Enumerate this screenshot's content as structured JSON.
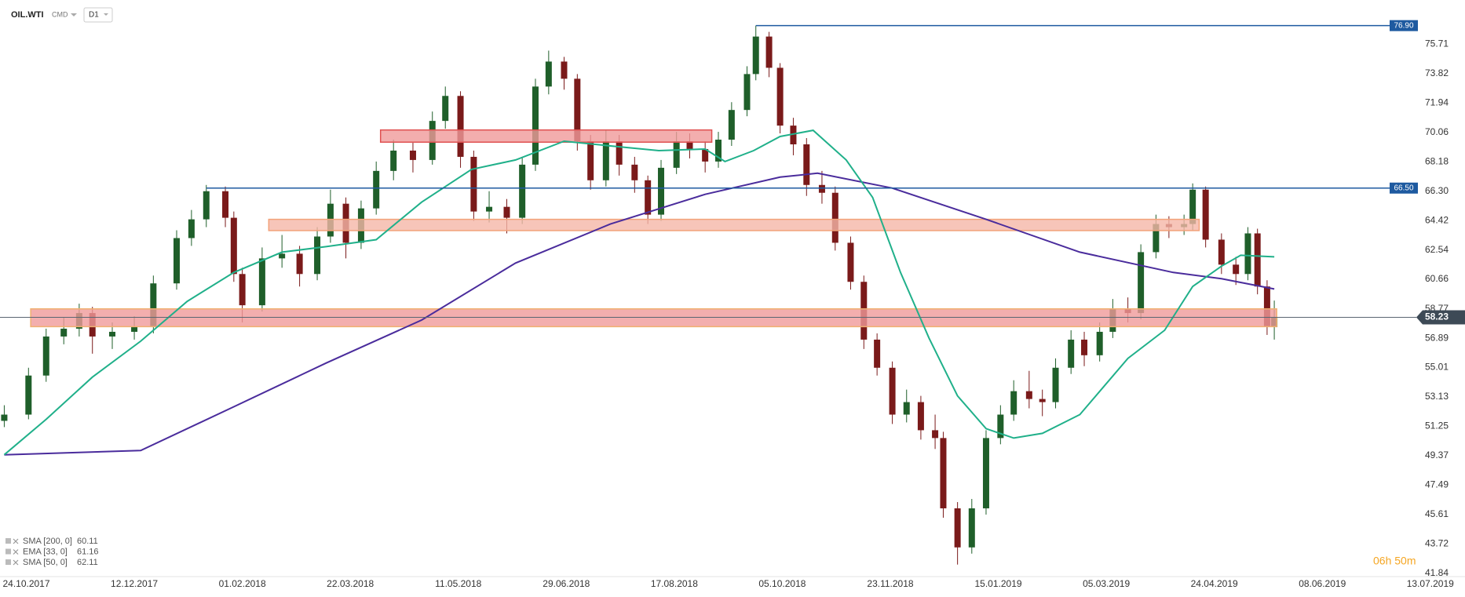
{
  "chart_data": {
    "type": "candlestick",
    "symbol": "OIL.WTI",
    "market": "CMD",
    "timeframe": "D1",
    "up_color": "#1f5f2a",
    "down_color": "#7a1a1a",
    "grid": false,
    "x": [
      "2017-10-14",
      "2017-10-25",
      "2017-11-02",
      "2017-11-10",
      "2017-11-17",
      "2017-11-23",
      "2017-12-02",
      "2017-12-12",
      "2017-12-21",
      "2018-01-01",
      "2018-01-08",
      "2018-01-15",
      "2018-01-24",
      "2018-01-28",
      "2018-02-01",
      "2018-02-10",
      "2018-02-19",
      "2018-02-27",
      "2018-03-07",
      "2018-03-13",
      "2018-03-20",
      "2018-03-27",
      "2018-04-03",
      "2018-04-11",
      "2018-04-20",
      "2018-04-29",
      "2018-05-05",
      "2018-05-12",
      "2018-05-18",
      "2018-05-25",
      "2018-06-02",
      "2018-06-09",
      "2018-06-15",
      "2018-06-21",
      "2018-06-28",
      "2018-07-04",
      "2018-07-10",
      "2018-07-17",
      "2018-07-23",
      "2018-07-30",
      "2018-08-05",
      "2018-08-11",
      "2018-08-18",
      "2018-08-24",
      "2018-08-31",
      "2018-09-06",
      "2018-09-12",
      "2018-09-19",
      "2018-09-23",
      "2018-09-29",
      "2018-10-04",
      "2018-10-10",
      "2018-10-16",
      "2018-10-23",
      "2018-10-29",
      "2018-11-05",
      "2018-11-11",
      "2018-11-17",
      "2018-11-24",
      "2018-12-01",
      "2018-12-08",
      "2018-12-15",
      "2018-12-19",
      "2018-12-26",
      "2019-01-02",
      "2019-01-09",
      "2019-01-16",
      "2019-01-22",
      "2019-01-29",
      "2019-02-04",
      "2019-02-10",
      "2019-02-17",
      "2019-02-23",
      "2019-03-02",
      "2019-03-08",
      "2019-03-15",
      "2019-03-21",
      "2019-03-28",
      "2019-04-03",
      "2019-04-10",
      "2019-04-14",
      "2019-04-20",
      "2019-04-27",
      "2019-05-03",
      "2019-05-08",
      "2019-05-12",
      "2019-05-16",
      "2019-05-19"
    ],
    "open": [
      51.6,
      52.0,
      54.5,
      57.0,
      57.5,
      58.5,
      57.0,
      57.3,
      57.6,
      60.4,
      63.3,
      64.5,
      66.3,
      64.6,
      61.0,
      59.0,
      62.0,
      62.3,
      61.0,
      63.4,
      65.5,
      63.0,
      65.2,
      67.6,
      68.9,
      68.3,
      70.8,
      72.4,
      68.5,
      65.0,
      65.3,
      64.6,
      68.0,
      73.0,
      74.6,
      73.5,
      69.5,
      67.0,
      69.5,
      68.0,
      67.0,
      64.8,
      67.8,
      69.5,
      69.0,
      68.2,
      69.6,
      71.5,
      73.8,
      76.2,
      74.2,
      70.5,
      69.3,
      66.7,
      66.2,
      63.0,
      60.5,
      56.8,
      55.0,
      52.0,
      52.8,
      51.0,
      50.5,
      46.0,
      43.5,
      46.0,
      50.5,
      52.0,
      53.5,
      53.0,
      52.8,
      55.0,
      56.8,
      55.8,
      57.3,
      58.8,
      58.5,
      62.4,
      64.2,
      64.0,
      64.2,
      66.4,
      63.2,
      61.6,
      61.0,
      63.6,
      60.2,
      57.6
    ],
    "high": [
      52.6,
      55.0,
      57.5,
      58.2,
      59.1,
      58.9,
      57.9,
      58.3,
      60.9,
      63.8,
      65.1,
      66.7,
      66.6,
      65.0,
      61.4,
      62.7,
      63.5,
      62.8,
      64.0,
      66.4,
      65.9,
      65.7,
      68.2,
      69.6,
      69.4,
      71.4,
      73.0,
      72.7,
      68.9,
      66.3,
      65.8,
      68.5,
      73.5,
      75.3,
      74.9,
      73.8,
      69.9,
      70.2,
      69.9,
      68.5,
      67.3,
      68.3,
      70.1,
      70.0,
      69.5,
      70.1,
      72.0,
      74.3,
      76.9,
      76.5,
      74.5,
      71.0,
      69.7,
      67.6,
      66.6,
      63.4,
      60.9,
      57.2,
      55.4,
      53.6,
      53.2,
      52.0,
      50.9,
      46.4,
      46.6,
      51.0,
      52.6,
      54.2,
      54.8,
      53.6,
      55.6,
      57.4,
      57.3,
      57.9,
      59.4,
      59.5,
      62.9,
      64.8,
      64.7,
      64.8,
      66.8,
      66.6,
      63.6,
      62.1,
      64.0,
      63.9,
      60.6,
      59.3
    ],
    "low": [
      51.2,
      51.7,
      54.1,
      56.5,
      57.0,
      55.9,
      56.2,
      56.8,
      57.2,
      60.0,
      62.8,
      64.0,
      64.0,
      60.5,
      57.9,
      58.6,
      61.4,
      60.2,
      60.6,
      63.0,
      62.0,
      62.6,
      64.8,
      67.0,
      67.5,
      68.0,
      70.3,
      67.8,
      64.4,
      64.3,
      63.6,
      64.2,
      67.6,
      72.5,
      72.8,
      68.9,
      66.4,
      66.6,
      67.3,
      66.2,
      64.2,
      64.4,
      67.4,
      68.4,
      67.5,
      67.8,
      69.2,
      71.1,
      73.4,
      73.6,
      70.0,
      68.6,
      66.0,
      65.5,
      62.5,
      60.0,
      56.2,
      54.5,
      51.4,
      51.5,
      50.4,
      49.8,
      45.4,
      42.4,
      43.1,
      45.6,
      50.1,
      51.6,
      52.4,
      51.9,
      52.4,
      54.6,
      55.1,
      55.4,
      56.9,
      57.9,
      58.1,
      62.0,
      63.3,
      63.5,
      63.8,
      62.7,
      61.0,
      60.3,
      60.6,
      59.7,
      57.1,
      56.8
    ],
    "close": [
      52.0,
      54.5,
      57.0,
      57.5,
      58.5,
      57.0,
      57.3,
      57.6,
      60.4,
      63.3,
      64.5,
      66.3,
      64.6,
      61.0,
      59.0,
      62.0,
      62.3,
      61.0,
      63.4,
      65.5,
      63.0,
      65.2,
      67.6,
      68.9,
      68.3,
      70.8,
      72.4,
      68.5,
      65.0,
      65.3,
      64.6,
      68.0,
      73.0,
      74.6,
      73.5,
      69.5,
      67.0,
      69.5,
      68.0,
      67.0,
      64.8,
      67.8,
      69.5,
      69.0,
      68.2,
      69.6,
      71.5,
      73.8,
      76.2,
      74.2,
      70.5,
      69.3,
      66.7,
      66.2,
      63.0,
      60.5,
      56.8,
      55.0,
      52.0,
      52.8,
      51.0,
      50.5,
      46.0,
      43.5,
      46.0,
      50.5,
      52.0,
      53.5,
      53.0,
      52.8,
      55.0,
      56.8,
      55.8,
      57.3,
      58.8,
      58.5,
      62.4,
      64.2,
      64.0,
      64.2,
      66.4,
      63.2,
      61.6,
      61.0,
      63.6,
      60.2,
      57.6,
      58.23
    ],
    "ylim": [
      41.63,
      78.54
    ],
    "yticks": [
      41.84,
      43.72,
      45.61,
      47.49,
      49.37,
      51.25,
      53.13,
      55.01,
      56.89,
      58.77,
      60.66,
      62.54,
      64.42,
      {
        "value": 66.3,
        "label": "66.30"
      },
      68.18,
      70.06,
      71.94,
      73.82,
      75.71
    ],
    "xticks": [
      {
        "value": "2017-10-24",
        "label": "24.10.2017"
      },
      {
        "value": "2017-12-12",
        "label": "12.12.2017"
      },
      {
        "value": "2018-02-01",
        "label": "01.02.2018"
      },
      {
        "value": "2018-03-22",
        "label": "22.03.2018"
      },
      {
        "value": "2018-05-11",
        "label": "11.05.2018"
      },
      {
        "value": "2018-06-29",
        "label": "29.06.2018"
      },
      {
        "value": "2018-08-17",
        "label": "17.08.2018"
      },
      {
        "value": "2018-10-05",
        "label": "05.10.2018"
      },
      {
        "value": "2018-11-23",
        "label": "23.11.2018"
      },
      {
        "value": "2019-01-15",
        "label": "15.01.2019"
      },
      {
        "value": "2019-03-05",
        "label": "05.03.2019"
      },
      {
        "value": "2019-04-24",
        "label": "24.04.2019"
      },
      {
        "value": "2019-06-08",
        "label": "08.06.2019"
      },
      {
        "value": "2019-07-13",
        "label": "13.07.2019"
      }
    ],
    "indicators": [
      {
        "label": "SMA [200, 0]",
        "last": 60.11,
        "color": "#4a2c9c",
        "x": [
          "2017-10-14",
          "2017-12-15",
          "2018-01-28",
          "2018-03-11",
          "2018-04-24",
          "2018-06-06",
          "2018-07-19",
          "2018-08-31",
          "2018-10-04",
          "2018-10-21",
          "2018-11-24",
          "2019-01-09",
          "2019-02-21",
          "2019-04-05",
          "2019-04-27",
          "2019-05-19"
        ],
        "values": [
          49.43,
          49.7,
          52.5,
          55.3,
          58.05,
          61.7,
          64.2,
          66.1,
          67.2,
          67.45,
          66.5,
          64.5,
          62.4,
          61.1,
          60.7,
          60.04
        ]
      },
      {
        "label": "EMA [33, 0]",
        "last": 61.16
      },
      {
        "label": "SMA [50, 0]",
        "last": 62.11,
        "color": "#20b08a",
        "x": [
          "2017-10-14",
          "2017-11-02",
          "2017-11-23",
          "2017-12-15",
          "2018-01-06",
          "2018-01-28",
          "2018-02-19",
          "2018-03-11",
          "2018-04-03",
          "2018-04-24",
          "2018-05-17",
          "2018-06-06",
          "2018-06-28",
          "2018-07-19",
          "2018-08-10",
          "2018-08-31",
          "2018-09-09",
          "2018-09-22",
          "2018-10-04",
          "2018-10-19",
          "2018-11-03",
          "2018-11-15",
          "2018-11-28",
          "2018-12-12",
          "2018-12-26",
          "2019-01-09",
          "2019-01-22",
          "2019-02-04",
          "2019-02-21",
          "2019-03-15",
          "2019-04-01",
          "2019-04-14",
          "2019-04-27",
          "2019-05-05",
          "2019-05-19"
        ],
        "values": [
          49.43,
          51.7,
          54.4,
          56.7,
          59.25,
          61.1,
          62.4,
          62.75,
          63.2,
          65.6,
          67.7,
          68.3,
          69.5,
          69.2,
          68.9,
          69.0,
          68.2,
          68.9,
          69.8,
          70.2,
          68.3,
          65.9,
          61.1,
          56.9,
          53.2,
          51.1,
          50.5,
          50.8,
          52.0,
          55.6,
          57.4,
          60.2,
          61.5,
          62.2,
          62.1
        ]
      }
    ],
    "zones": [
      {
        "from": "2018-04-05",
        "to": "2018-09-03",
        "low": 69.44,
        "high": 70.22,
        "color": "#f09a9a",
        "border": "#e05050"
      },
      {
        "from": "2018-02-13",
        "to": "2019-04-17",
        "low": 63.78,
        "high": 64.5,
        "color": "#f5b7a8",
        "border": "#f2a27a"
      },
      {
        "from": "2017-10-26",
        "to": "2019-05-20",
        "low": 57.63,
        "high": 58.77,
        "color": "#f09a9a",
        "border": "#f0b070"
      }
    ],
    "levels": [
      {
        "value": 76.9,
        "label": "76.90",
        "from": "2018-09-23",
        "color": "#1e5aa0"
      },
      {
        "value": 66.5,
        "label": "66.50",
        "from": "2018-01-15",
        "color": "#1e5aa0"
      }
    ],
    "last_price": 58.23,
    "countdown": "06h 50m"
  }
}
